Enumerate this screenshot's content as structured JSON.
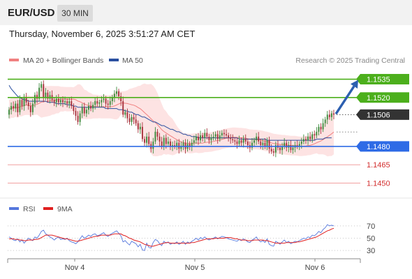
{
  "header": {
    "pair": "EUR/USD",
    "timeframe": "30 MIN"
  },
  "timestamp": "Thursday, November 6, 2025 3:51:27 AM CET",
  "legend": {
    "ma20": {
      "label": "MA 20 + Bollinger Bands",
      "color": "#f08080"
    },
    "ma50": {
      "label": "MA 50",
      "color": "#2a4fa0"
    },
    "rsi": {
      "label": "RSI",
      "color": "#5577dd"
    },
    "ma9": {
      "label": "9MA",
      "color": "#e02020"
    }
  },
  "credit": "Research © 2025 Trading Central",
  "chart_data": {
    "type": "candlestick",
    "ylim": [
      1.144,
      1.1545
    ],
    "levels": [
      {
        "value": "1.1535",
        "kind": "resistance",
        "color": "#4caf1c"
      },
      {
        "value": "1.1520",
        "kind": "resistance",
        "color": "#4caf1c"
      },
      {
        "value": "1.1506",
        "kind": "last",
        "color": "#333333"
      },
      {
        "value": "1.1480",
        "kind": "pivot",
        "color": "#2e6be6"
      },
      {
        "value": "1.1465",
        "kind": "support",
        "color": "#e03030"
      },
      {
        "value": "1.1450",
        "kind": "support",
        "color": "#e03030"
      }
    ],
    "close": [
      1.151,
      1.1513,
      1.1511,
      1.1515,
      1.1508,
      1.1518,
      1.1513,
      1.152,
      1.1516,
      1.1513,
      1.1508,
      1.1515,
      1.1522,
      1.1519,
      1.1528,
      1.1531,
      1.152,
      1.1524,
      1.1519,
      1.1522,
      1.1518,
      1.1516,
      1.1519,
      1.1516,
      1.1518,
      1.1516,
      1.1517,
      1.1515,
      1.1517,
      1.1513,
      1.1509,
      1.1505,
      1.15,
      1.1507,
      1.1512,
      1.1507,
      1.151,
      1.1513,
      1.1511,
      1.1514,
      1.1517,
      1.1515,
      1.1516,
      1.1518,
      1.1519,
      1.1515,
      1.1514,
      1.1517,
      1.152,
      1.1523,
      1.1525,
      1.1521,
      1.1517,
      1.1506,
      1.1508,
      1.1503,
      1.15,
      1.1504,
      1.1502,
      1.1499,
      1.1494,
      1.1496,
      1.1486,
      1.1483,
      1.1488,
      1.1482,
      1.1478,
      1.1484,
      1.1492,
      1.1488,
      1.1484,
      1.148,
      1.1487,
      1.1482,
      1.1484,
      1.148,
      1.1481,
      1.148,
      1.1483,
      1.1478,
      1.148,
      1.1483,
      1.1478,
      1.1482,
      1.148,
      1.1483,
      1.1485,
      1.1488,
      1.1485,
      1.1489,
      1.1487,
      1.1491,
      1.1488,
      1.1485,
      1.1487,
      1.1488,
      1.149,
      1.1486,
      1.1489,
      1.1491,
      1.149,
      1.1489,
      1.1487,
      1.1486,
      1.1485,
      1.1484,
      1.1482,
      1.1485,
      1.1483,
      1.1486,
      1.1484,
      1.1481,
      1.1479,
      1.1483,
      1.1485,
      1.1488,
      1.1484,
      1.1481,
      1.1483,
      1.148,
      1.1485,
      1.1478,
      1.1476,
      1.1475,
      1.1481,
      1.1479,
      1.1477,
      1.148,
      1.1483,
      1.1479,
      1.1481,
      1.1477,
      1.1479,
      1.1481,
      1.148,
      1.1482,
      1.1484,
      1.1486,
      1.1485,
      1.1488,
      1.1486,
      1.149,
      1.1489,
      1.1492,
      1.1496,
      1.1494,
      1.1499,
      1.1502,
      1.1506,
      1.1504,
      1.1507,
      1.1506
    ],
    "ma50": [
      1.153,
      1.1527,
      1.1525,
      1.1523,
      1.1521,
      1.152,
      1.1519,
      1.1518,
      1.1518,
      1.1517,
      1.1517,
      1.1517,
      1.1517,
      1.1517,
      1.1517,
      1.1517,
      1.1517,
      1.1517,
      1.1516,
      1.1516,
      1.1516,
      1.1516,
      1.1515,
      1.1515,
      1.1515,
      1.1515,
      1.1515,
      1.1514,
      1.1514,
      1.1514,
      1.1513,
      1.1513,
      1.1512,
      1.1512,
      1.1512,
      1.1512,
      1.1512,
      1.1512,
      1.1512,
      1.1512,
      1.1512,
      1.1512,
      1.1512,
      1.1512,
      1.1512,
      1.1511,
      1.1511,
      1.1511,
      1.1511,
      1.1511,
      1.1511,
      1.151,
      1.151,
      1.151,
      1.1509,
      1.1509,
      1.1508,
      1.1508,
      1.1507,
      1.1506,
      1.1506,
      1.1505,
      1.1504,
      1.1504,
      1.1503,
      1.1502,
      1.1501,
      1.15,
      1.15,
      1.1499,
      1.1498,
      1.1497,
      1.1497,
      1.1496,
      1.1495,
      1.1494,
      1.1494,
      1.1493,
      1.1492,
      1.1492,
      1.1491,
      1.149,
      1.149,
      1.1489,
      1.1489,
      1.1488,
      1.1488,
      1.1488,
      1.1487,
      1.1487,
      1.1487,
      1.1487,
      1.1487,
      1.1487,
      1.1487,
      1.1487,
      1.1487,
      1.1487,
      1.1487,
      1.1487,
      1.1487,
      1.1487,
      1.1487,
      1.1487,
      1.1487,
      1.1487,
      1.1487,
      1.1486,
      1.1486,
      1.1486,
      1.1486,
      1.1486,
      1.1486,
      1.1486,
      1.1486,
      1.1486,
      1.1486,
      1.1486,
      1.1486,
      1.1486,
      1.1485,
      1.1485,
      1.1485,
      1.1485,
      1.1485,
      1.1485,
      1.1485,
      1.1485,
      1.1485,
      1.1485,
      1.1485,
      1.1485,
      1.1485,
      1.1485,
      1.1485,
      1.1485,
      1.1485,
      1.1485,
      1.1485,
      1.1485,
      1.1485,
      1.1485,
      1.1485,
      1.1486,
      1.1486,
      1.1486,
      1.1486,
      1.1487,
      1.1487,
      1.1487,
      1.1487
    ],
    "x_ticks": [
      "Nov 4",
      "Nov 5",
      "Nov 6"
    ],
    "rsi": {
      "ylim": [
        20,
        80
      ],
      "ticks": [
        "70",
        "50",
        "30"
      ],
      "values": [
        52,
        50,
        47,
        46,
        49,
        44,
        47,
        42,
        46,
        50,
        48,
        46,
        52,
        50,
        55,
        61,
        63,
        57,
        55,
        52,
        50,
        47,
        50,
        52,
        48,
        49,
        48,
        50,
        46,
        44,
        43,
        41,
        44,
        49,
        54,
        50,
        52,
        55,
        53,
        56,
        57,
        54,
        55,
        57,
        59,
        55,
        53,
        56,
        58,
        60,
        62,
        58,
        54,
        44,
        46,
        42,
        39,
        45,
        43,
        41,
        36,
        40,
        31,
        30,
        42,
        35,
        34,
        43,
        48,
        46,
        41,
        38,
        45,
        42,
        44,
        40,
        42,
        41,
        44,
        40,
        42,
        45,
        40,
        44,
        42,
        45,
        47,
        50,
        47,
        51,
        49,
        52,
        49,
        47,
        49,
        50,
        52,
        49,
        51,
        53,
        52,
        51,
        49,
        48,
        47,
        46,
        45,
        48,
        46,
        49,
        47,
        44,
        43,
        47,
        49,
        52,
        47,
        44,
        46,
        43,
        49,
        40,
        38,
        37,
        45,
        43,
        40,
        44,
        47,
        43,
        45,
        41,
        43,
        45,
        44,
        46,
        48,
        50,
        49,
        52,
        51,
        55,
        54,
        57,
        61,
        59,
        64,
        67,
        72,
        70,
        71,
        70
      ],
      "ma9": [
        49,
        49,
        49,
        48,
        48,
        47,
        47,
        46,
        46,
        47,
        47,
        47,
        48,
        48,
        49,
        51,
        53,
        55,
        55,
        55,
        55,
        54,
        53,
        52,
        51,
        50,
        49,
        49,
        48,
        47,
        46,
        45,
        45,
        46,
        47,
        48,
        49,
        50,
        51,
        52,
        53,
        53,
        54,
        55,
        55,
        55,
        55,
        55,
        56,
        57,
        57,
        57,
        57,
        55,
        54,
        52,
        50,
        49,
        47,
        46,
        45,
        44,
        42,
        40,
        39,
        38,
        37,
        37,
        38,
        39,
        40,
        41,
        42,
        43,
        43,
        42,
        42,
        42,
        42,
        42,
        42,
        42,
        42,
        42,
        42,
        43,
        43,
        44,
        45,
        46,
        47,
        48,
        49,
        49,
        49,
        49,
        50,
        50,
        50,
        50,
        50,
        51,
        51,
        51,
        50,
        49,
        49,
        48,
        47,
        47,
        47,
        46,
        46,
        46,
        47,
        47,
        47,
        47,
        47,
        46,
        46,
        45,
        44,
        43,
        42,
        42,
        42,
        42,
        42,
        43,
        43,
        43,
        43,
        43,
        44,
        44,
        45,
        46,
        47,
        48,
        49,
        50,
        51,
        52,
        54,
        56,
        58,
        60,
        62,
        63,
        65,
        66
      ]
    }
  }
}
